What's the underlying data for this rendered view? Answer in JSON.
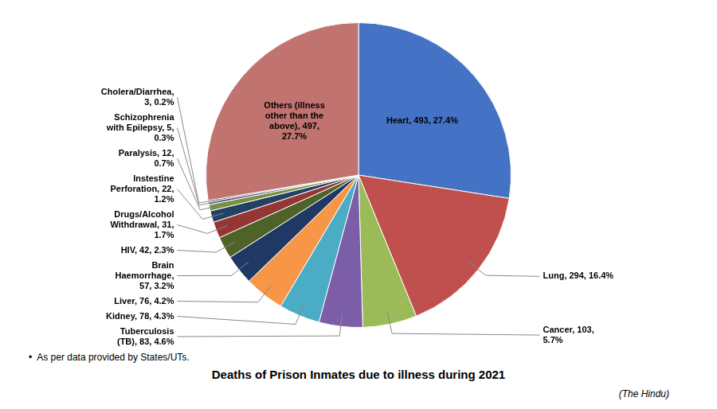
{
  "chart_data": {
    "type": "pie",
    "title": "Deaths of Prison Inmates due to illness during 2021",
    "footnote": "•  As per data provided by States/UTs.",
    "source": "(The Hindu)",
    "values": [
      493,
      294,
      103,
      83,
      78,
      76,
      57,
      42,
      31,
      22,
      12,
      5,
      3,
      497
    ],
    "value_labels": [
      "Heart, 493, 27.4%",
      "Lung, 294, 16.4%",
      "Cancer, 103,\n5.7%",
      "Tuberculosis\n(TB), 83, 4.6%",
      "Kidney, 78, 4.3%",
      "Liver, 76, 4.2%",
      "Brain\nHaemorrhage,\n57, 3.2%",
      "HIV, 42, 2.3%",
      "Drugs/Alcohol\nWithdrawal, 31,\n1.7%",
      "Instestine\nPerforation, 22,\n1.2%",
      "Paralysis, 12,\n0.7%",
      "Schizophrenia\nwith Epilepsy, 5,\n0.3%",
      "Cholera/Diarrhea,\n3, 0.2%",
      "Others (illness\nother than the\nabove), 497,\n27.7%"
    ],
    "colors": [
      "#4472C4",
      "#C0504D",
      "#9BBB59",
      "#7B5EA7",
      "#4BACC6",
      "#F79646",
      "#1F3864",
      "#4F6228",
      "#943634",
      "#244062",
      "#76923C",
      "#604A7B",
      "#215868",
      "#C0736F"
    ],
    "data_labels": true
  }
}
